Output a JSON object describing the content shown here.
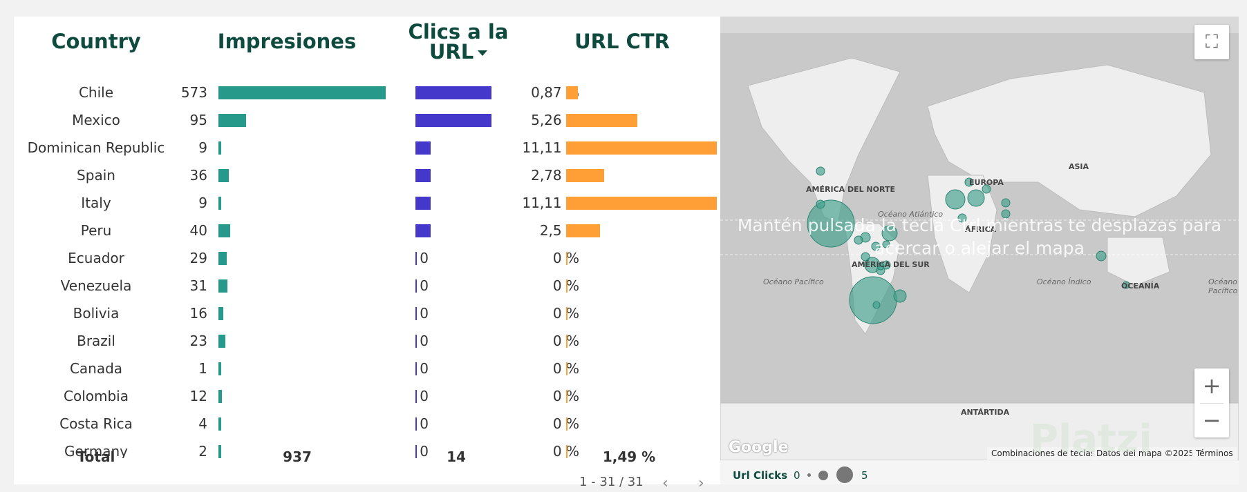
{
  "table": {
    "headers": {
      "country": "Country",
      "impressions": "Impresiones",
      "clicks_line1": "Clics a la",
      "clicks_line2": "URL",
      "ctr": "URL CTR"
    },
    "rows": [
      {
        "country": "Chile",
        "impressions": "573",
        "clicks": "5",
        "ctr": "0,87 %"
      },
      {
        "country": "Mexico",
        "impressions": "95",
        "clicks": "5",
        "ctr": "5,26 %"
      },
      {
        "country": "Dominican Republic",
        "impressions": "9",
        "clicks": "1",
        "ctr": "11,11 %"
      },
      {
        "country": "Spain",
        "impressions": "36",
        "clicks": "1",
        "ctr": "2,78 %"
      },
      {
        "country": "Italy",
        "impressions": "9",
        "clicks": "1",
        "ctr": "11,11 %"
      },
      {
        "country": "Peru",
        "impressions": "40",
        "clicks": "1",
        "ctr": "2,5 %"
      },
      {
        "country": "Ecuador",
        "impressions": "29",
        "clicks": "0",
        "ctr": "0 %"
      },
      {
        "country": "Venezuela",
        "impressions": "31",
        "clicks": "0",
        "ctr": "0 %"
      },
      {
        "country": "Bolivia",
        "impressions": "16",
        "clicks": "0",
        "ctr": "0 %"
      },
      {
        "country": "Brazil",
        "impressions": "23",
        "clicks": "0",
        "ctr": "0 %"
      },
      {
        "country": "Canada",
        "impressions": "1",
        "clicks": "0",
        "ctr": "0 %"
      },
      {
        "country": "Colombia",
        "impressions": "12",
        "clicks": "0",
        "ctr": "0 %"
      },
      {
        "country": "Costa Rica",
        "impressions": "4",
        "clicks": "0",
        "ctr": "0 %"
      },
      {
        "country": "Germany",
        "impressions": "2",
        "clicks": "0",
        "ctr": "0 %"
      }
    ],
    "totals": {
      "label": "Total",
      "impressions": "937",
      "clicks": "14",
      "ctr": "1,49 %"
    },
    "pager": "1 - 31 / 31",
    "colors": {
      "impressions": "#26998a",
      "clicks": "#4338c9",
      "ctr": "#ff9f35",
      "header": "#0f4a3e"
    }
  },
  "map": {
    "overlay_message": "Mantén pulsada la tecla Ctrl mientras te desplazas para acercar o alejar el mapa",
    "labels": {
      "north_america": "AMÉRICA DEL NORTE",
      "south_america": "AMÉRICA DEL SUR",
      "europe": "EUROPA",
      "asia": "ASIA",
      "africa": "ÁFRICA",
      "oceania": "OCEANÍA",
      "antarctica": "ANTÁRTIDA",
      "atlantic": "Océano Atlántico",
      "pacific": "Océano Pacífico",
      "pacific_right": "Océano Pacífico",
      "indian": "Océano Índico"
    },
    "google_logo": "Google",
    "attribution": {
      "shortcuts": "Combinaciones de teclas",
      "data": "Datos del mapa ©2025",
      "terms": "Términos"
    },
    "legend": {
      "title": "Url Clicks",
      "min": "0",
      "max": "5"
    },
    "bubble_color": "#3fa08c",
    "watermark": "Platzi"
  }
}
